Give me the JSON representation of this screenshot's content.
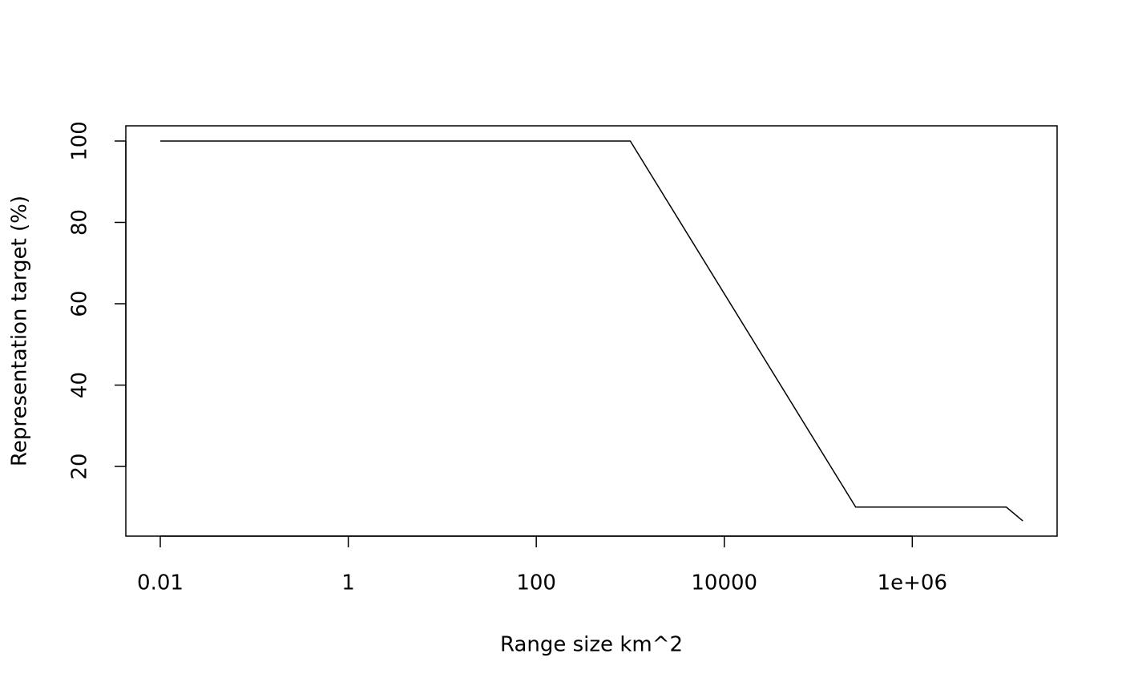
{
  "chart_data": {
    "type": "line",
    "x_label": "Range size km^2",
    "y_label": "Representation target (%)",
    "x_scale": "log",
    "x": [
      0.01,
      1000,
      250000,
      10000000,
      15000000
    ],
    "series": [
      {
        "color": "#000000",
        "values": [
          100,
          100,
          10,
          10,
          6.6
        ]
      }
    ],
    "xlim": [
      0.0043,
      34700000
    ],
    "xticks": [
      0.01,
      1,
      100,
      10000,
      {
        "value": 1000000,
        "label": "1e+06"
      }
    ],
    "ylim": [
      2.87,
      103.74
    ],
    "yticks": [
      20,
      40,
      60,
      80,
      100
    ]
  }
}
